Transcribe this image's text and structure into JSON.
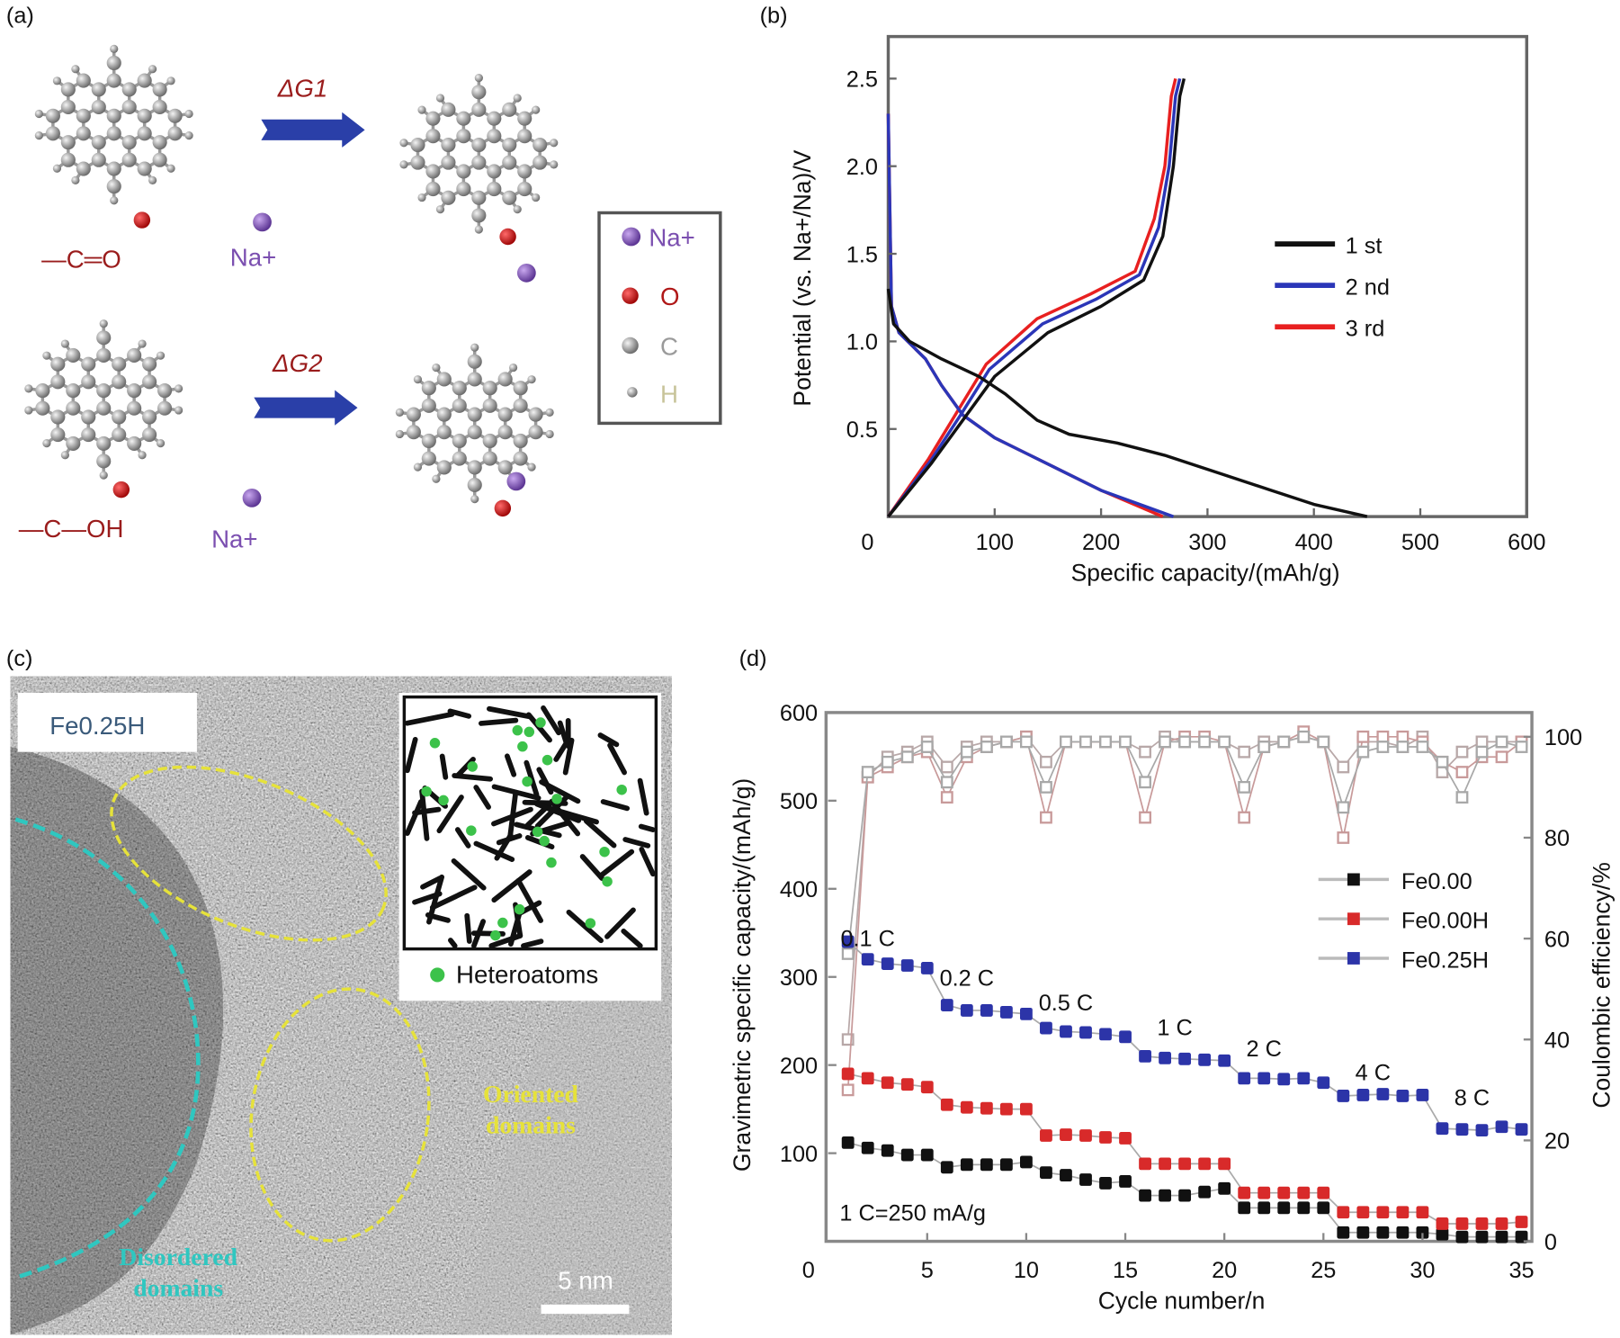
{
  "panel_labels": {
    "a": "(a)",
    "b": "(b)",
    "c": "(c)",
    "d": "(d)"
  },
  "panel_a": {
    "dg1": "ΔG1",
    "dg2": "ΔG2",
    "group1": "—C═O",
    "group2": "—C—OH",
    "ion1": "Na+",
    "ion2": "Na+",
    "legend": [
      {
        "label": "Na+",
        "color": "#7b4fb0"
      },
      {
        "label": "O",
        "color": "#b01818"
      },
      {
        "label": "C",
        "color": "#9a9a9a"
      },
      {
        "label": "H",
        "color": "#c8c49a"
      }
    ],
    "colors": {
      "arrow": "#2a3fa8",
      "text_red": "#9a1c1c",
      "text_purple": "#7b4fb0"
    }
  },
  "panel_c": {
    "sample_label": "Fe0.25H",
    "inset_legend": "Heteroatoms",
    "oriented_label": "Oriented domains",
    "disordered_label": "Disordered domains",
    "scale_bar": "5 nm",
    "colors": {
      "oriented": "#e6e23a",
      "disordered": "#2fc7c0",
      "heteroatom": "#3cc24a"
    }
  },
  "chart_data": [
    {
      "type": "line",
      "panel": "b",
      "xlabel": "Specific capacity/(mAh/g)",
      "ylabel": "Potential (vs. Na+/Na)/V",
      "xlim": [
        0,
        600
      ],
      "ylim": [
        0,
        2.74
      ],
      "xticks": [
        "0",
        "100",
        "200",
        "300",
        "400",
        "500",
        "600"
      ],
      "yticks": [
        "0.5",
        "1.0",
        "1.5",
        "2.0",
        "2.5"
      ],
      "grid": false,
      "legend_position": "center-right",
      "series": [
        {
          "name": "1 st",
          "color": "#111111",
          "discharge": [
            [
              0,
              1.3
            ],
            [
              5,
              1.1
            ],
            [
              20,
              1.0
            ],
            [
              50,
              0.9
            ],
            [
              85,
              0.8
            ],
            [
              110,
              0.7
            ],
            [
              140,
              0.55
            ],
            [
              170,
              0.47
            ],
            [
              215,
              0.42
            ],
            [
              260,
              0.35
            ],
            [
              310,
              0.25
            ],
            [
              360,
              0.15
            ],
            [
              400,
              0.07
            ],
            [
              450,
              0
            ]
          ],
          "charge": [
            [
              0,
              0
            ],
            [
              40,
              0.3
            ],
            [
              70,
              0.55
            ],
            [
              100,
              0.8
            ],
            [
              150,
              1.05
            ],
            [
              200,
              1.2
            ],
            [
              240,
              1.35
            ],
            [
              258,
              1.6
            ],
            [
              268,
              2.0
            ],
            [
              274,
              2.4
            ],
            [
              278,
              2.5
            ]
          ]
        },
        {
          "name": "2 nd",
          "color": "#2b36b8",
          "discharge": [
            [
              0,
              2.3
            ],
            [
              3,
              1.2
            ],
            [
              10,
              1.05
            ],
            [
              35,
              0.9
            ],
            [
              50,
              0.75
            ],
            [
              70,
              0.58
            ],
            [
              100,
              0.45
            ],
            [
              150,
              0.3
            ],
            [
              200,
              0.15
            ],
            [
              268,
              0
            ]
          ],
          "charge": [
            [
              0,
              0
            ],
            [
              40,
              0.32
            ],
            [
              68,
              0.58
            ],
            [
              95,
              0.84
            ],
            [
              145,
              1.1
            ],
            [
              195,
              1.24
            ],
            [
              236,
              1.38
            ],
            [
              254,
              1.65
            ],
            [
              264,
              2.0
            ],
            [
              270,
              2.4
            ],
            [
              274,
              2.5
            ]
          ]
        },
        {
          "name": "3 rd",
          "color": "#e82020",
          "discharge": [
            [
              0,
              2.3
            ],
            [
              3,
              1.2
            ],
            [
              10,
              1.05
            ],
            [
              35,
              0.9
            ],
            [
              50,
              0.75
            ],
            [
              70,
              0.58
            ],
            [
              100,
              0.45
            ],
            [
              150,
              0.3
            ],
            [
              200,
              0.15
            ],
            [
              258,
              0
            ]
          ],
          "charge": [
            [
              0,
              0
            ],
            [
              38,
              0.33
            ],
            [
              65,
              0.6
            ],
            [
              92,
              0.87
            ],
            [
              140,
              1.13
            ],
            [
              190,
              1.27
            ],
            [
              232,
              1.4
            ],
            [
              250,
              1.7
            ],
            [
              260,
              2.0
            ],
            [
              266,
              2.4
            ],
            [
              270,
              2.5
            ]
          ]
        }
      ]
    },
    {
      "type": "scatter",
      "panel": "d",
      "xlabel": "Cycle number/n",
      "ylabel": "Gravimetric specific capacity/(mAh/g)",
      "y2label": "Coulombic efficiency/%",
      "xlim": [
        0,
        35
      ],
      "ylim": [
        0,
        600
      ],
      "y2lim": [
        0,
        100
      ],
      "xticks": [
        "0",
        "5",
        "10",
        "15",
        "20",
        "25",
        "30",
        "35"
      ],
      "yticks": [
        "100",
        "200",
        "300",
        "400",
        "500",
        "600"
      ],
      "y2ticks": [
        "0",
        "20",
        "40",
        "60",
        "80",
        "100"
      ],
      "legend_position": "right",
      "annotation": "1 C=250 mA/g",
      "rate_labels": [
        {
          "text": "0.1 C",
          "cycle": 2,
          "capacity": 335
        },
        {
          "text": "0.2 C",
          "cycle": 7,
          "capacity": 290
        },
        {
          "text": "0.5 C",
          "cycle": 12,
          "capacity": 262
        },
        {
          "text": "1 C",
          "cycle": 17.5,
          "capacity": 234
        },
        {
          "text": "2 C",
          "cycle": 22,
          "capacity": 210
        },
        {
          "text": "4 C",
          "cycle": 27.5,
          "capacity": 183
        },
        {
          "text": "8 C",
          "cycle": 32.5,
          "capacity": 154
        }
      ],
      "series": [
        {
          "name": "Fe0.00",
          "color": "#111111",
          "capacity": [
            112,
            106,
            103,
            98,
            98,
            84,
            87,
            87,
            87,
            90,
            78,
            75,
            70,
            66,
            68,
            52,
            52,
            52,
            56,
            60,
            38,
            38,
            38,
            38,
            38,
            10,
            10,
            10,
            10,
            10,
            8,
            5,
            5,
            5,
            5
          ],
          "coulombic_efficiency": [
            40,
            92,
            96,
            97,
            99,
            94,
            98,
            99,
            99,
            100,
            95,
            99,
            99,
            99,
            99,
            97,
            100,
            99,
            99,
            99,
            97,
            99,
            99,
            100,
            99,
            94,
            99,
            99,
            98,
            100,
            93,
            97,
            99,
            99,
            99
          ]
        },
        {
          "name": "Fe0.00H",
          "color": "#d82a2a",
          "capacity": [
            190,
            185,
            180,
            178,
            175,
            155,
            152,
            151,
            150,
            150,
            120,
            121,
            120,
            118,
            117,
            88,
            88,
            88,
            88,
            88,
            55,
            55,
            55,
            55,
            55,
            33,
            33,
            33,
            33,
            33,
            20,
            20,
            20,
            20,
            22
          ],
          "coulombic_efficiency": [
            30,
            92,
            94,
            96,
            97,
            88,
            96,
            98,
            99,
            100,
            84,
            99,
            99,
            99,
            99,
            84,
            99,
            100,
            100,
            99,
            84,
            98,
            99,
            101,
            99,
            80,
            100,
            100,
            100,
            99,
            95,
            93,
            96,
            96,
            99
          ]
        },
        {
          "name": "Fe0.25H",
          "color": "#2c34a8",
          "capacity": [
            340,
            320,
            315,
            313,
            310,
            268,
            262,
            262,
            260,
            258,
            242,
            238,
            237,
            235,
            232,
            210,
            208,
            207,
            206,
            205,
            185,
            185,
            184,
            185,
            180,
            165,
            166,
            167,
            165,
            166,
            128,
            127,
            126,
            130,
            127
          ],
          "coulombic_efficiency": [
            57,
            93,
            95,
            96,
            98,
            91,
            97,
            98,
            99,
            99,
            90,
            99,
            99,
            99,
            99,
            91,
            99,
            99,
            99,
            99,
            90,
            98,
            99,
            100,
            99,
            86,
            97,
            98,
            98,
            98,
            95,
            88,
            97,
            99,
            98
          ]
        }
      ]
    }
  ]
}
